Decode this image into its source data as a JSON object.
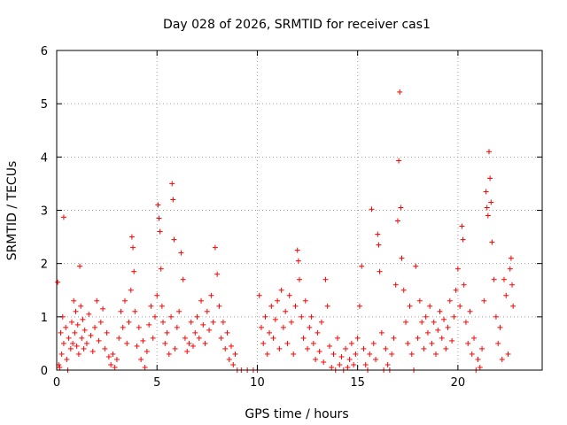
{
  "chart_data": {
    "type": "scatter",
    "title": "Day 028 of 2026, SRMTID for receiver cas1",
    "xlabel": "GPS time / hours",
    "ylabel": "SRMTID / TECUs",
    "xlim": [
      0,
      24.2
    ],
    "ylim": [
      0,
      6
    ],
    "xticks": [
      0,
      5,
      10,
      15,
      20
    ],
    "yticks": [
      0,
      1,
      2,
      3,
      4,
      5,
      6
    ],
    "grid": true,
    "marker": "+",
    "series": [
      {
        "name": "SRMTID",
        "color": "#ff0000",
        "points": [
          [
            0.05,
            1.65
          ],
          [
            0.1,
            0.1
          ],
          [
            0.15,
            0.05
          ],
          [
            0.2,
            0.7
          ],
          [
            0.25,
            0.3
          ],
          [
            0.3,
            1.0
          ],
          [
            0.35,
            0.5
          ],
          [
            0.35,
            2.87
          ],
          [
            0.45,
            0.8
          ],
          [
            0.5,
            0.2
          ],
          [
            0.55,
            0.0
          ],
          [
            0.6,
            0.6
          ],
          [
            0.7,
            0.4
          ],
          [
            0.75,
            0.9
          ],
          [
            0.8,
            0.5
          ],
          [
            0.85,
            1.3
          ],
          [
            0.9,
            0.7
          ],
          [
            0.95,
            1.1
          ],
          [
            1.0,
            0.45
          ],
          [
            1.05,
            0.85
          ],
          [
            1.1,
            0.3
          ],
          [
            1.15,
            1.95
          ],
          [
            1.2,
            1.2
          ],
          [
            1.25,
            0.6
          ],
          [
            1.3,
            0.95
          ],
          [
            1.35,
            0.4
          ],
          [
            1.4,
            0.75
          ],
          [
            1.5,
            0.5
          ],
          [
            1.6,
            1.05
          ],
          [
            1.7,
            0.65
          ],
          [
            1.8,
            0.35
          ],
          [
            1.9,
            0.8
          ],
          [
            2.0,
            1.3
          ],
          [
            2.1,
            0.55
          ],
          [
            2.2,
            0.9
          ],
          [
            2.3,
            1.15
          ],
          [
            2.4,
            0.4
          ],
          [
            2.5,
            0.7
          ],
          [
            2.6,
            0.25
          ],
          [
            2.7,
            0.1
          ],
          [
            2.8,
            0.3
          ],
          [
            2.9,
            0.05
          ],
          [
            3.0,
            0.2
          ],
          [
            3.1,
            0.6
          ],
          [
            3.2,
            1.1
          ],
          [
            3.3,
            0.8
          ],
          [
            3.4,
            1.3
          ],
          [
            3.5,
            0.5
          ],
          [
            3.6,
            0.9
          ],
          [
            3.7,
            1.5
          ],
          [
            3.75,
            2.5
          ],
          [
            3.8,
            2.3
          ],
          [
            3.85,
            1.85
          ],
          [
            3.9,
            1.1
          ],
          [
            4.0,
            0.45
          ],
          [
            4.1,
            0.8
          ],
          [
            4.2,
            0.2
          ],
          [
            4.3,
            0.55
          ],
          [
            4.4,
            0.05
          ],
          [
            4.5,
            0.35
          ],
          [
            4.6,
            0.85
          ],
          [
            4.7,
            1.2
          ],
          [
            4.8,
            0.6
          ],
          [
            4.9,
            1.0
          ],
          [
            5.0,
            1.4
          ],
          [
            5.05,
            3.1
          ],
          [
            5.1,
            2.85
          ],
          [
            5.15,
            2.6
          ],
          [
            5.2,
            1.9
          ],
          [
            5.25,
            1.2
          ],
          [
            5.3,
            0.9
          ],
          [
            5.4,
            0.5
          ],
          [
            5.5,
            0.7
          ],
          [
            5.6,
            0.3
          ],
          [
            5.7,
            1.0
          ],
          [
            5.75,
            3.5
          ],
          [
            5.8,
            3.2
          ],
          [
            5.85,
            2.45
          ],
          [
            5.9,
            0.4
          ],
          [
            6.0,
            0.8
          ],
          [
            6.1,
            1.1
          ],
          [
            6.2,
            2.2
          ],
          [
            6.3,
            1.7
          ],
          [
            6.4,
            0.6
          ],
          [
            6.5,
            0.35
          ],
          [
            6.6,
            0.5
          ],
          [
            6.7,
            0.9
          ],
          [
            6.8,
            0.45
          ],
          [
            6.9,
            0.7
          ],
          [
            7.0,
            1.0
          ],
          [
            7.1,
            0.6
          ],
          [
            7.2,
            1.3
          ],
          [
            7.3,
            0.85
          ],
          [
            7.4,
            0.5
          ],
          [
            7.5,
            1.1
          ],
          [
            7.6,
            0.75
          ],
          [
            7.7,
            1.4
          ],
          [
            7.8,
            0.9
          ],
          [
            7.9,
            2.3
          ],
          [
            8.0,
            1.8
          ],
          [
            8.1,
            1.2
          ],
          [
            8.2,
            0.6
          ],
          [
            8.3,
            0.9
          ],
          [
            8.4,
            0.4
          ],
          [
            8.5,
            0.7
          ],
          [
            8.6,
            0.2
          ],
          [
            8.7,
            0.45
          ],
          [
            8.8,
            0.1
          ],
          [
            8.9,
            0.3
          ],
          [
            9.0,
            0.0
          ],
          [
            9.2,
            0.0
          ],
          [
            9.5,
            0.0
          ],
          [
            9.8,
            0.0
          ],
          [
            10.0,
            0.0
          ],
          [
            10.1,
            1.4
          ],
          [
            10.2,
            0.8
          ],
          [
            10.3,
            0.5
          ],
          [
            10.4,
            1.0
          ],
          [
            10.5,
            0.3
          ],
          [
            10.6,
            0.7
          ],
          [
            10.7,
            1.2
          ],
          [
            10.8,
            0.6
          ],
          [
            10.9,
            0.95
          ],
          [
            11.0,
            1.3
          ],
          [
            11.1,
            0.4
          ],
          [
            11.2,
            1.5
          ],
          [
            11.3,
            0.8
          ],
          [
            11.4,
            1.1
          ],
          [
            11.5,
            0.5
          ],
          [
            11.6,
            1.4
          ],
          [
            11.7,
            0.9
          ],
          [
            11.8,
            0.3
          ],
          [
            11.9,
            1.2
          ],
          [
            12.0,
            2.25
          ],
          [
            12.05,
            2.05
          ],
          [
            12.1,
            1.7
          ],
          [
            12.2,
            1.0
          ],
          [
            12.3,
            0.6
          ],
          [
            12.4,
            1.3
          ],
          [
            12.5,
            0.4
          ],
          [
            12.6,
            0.8
          ],
          [
            12.7,
            1.0
          ],
          [
            12.8,
            0.5
          ],
          [
            12.9,
            0.2
          ],
          [
            13.0,
            0.7
          ],
          [
            13.1,
            0.35
          ],
          [
            13.2,
            0.9
          ],
          [
            13.3,
            0.15
          ],
          [
            13.4,
            1.7
          ],
          [
            13.5,
            1.2
          ],
          [
            13.6,
            0.45
          ],
          [
            13.7,
            0.05
          ],
          [
            13.8,
            0.3
          ],
          [
            13.9,
            0.0
          ],
          [
            14.0,
            0.6
          ],
          [
            14.1,
            0.1
          ],
          [
            14.2,
            0.25
          ],
          [
            14.3,
            0.0
          ],
          [
            14.4,
            0.4
          ],
          [
            14.5,
            0.05
          ],
          [
            14.6,
            0.2
          ],
          [
            14.7,
            0.5
          ],
          [
            14.8,
            0.1
          ],
          [
            14.9,
            0.3
          ],
          [
            15.0,
            0.6
          ],
          [
            15.1,
            1.2
          ],
          [
            15.2,
            1.95
          ],
          [
            15.3,
            0.4
          ],
          [
            15.4,
            0.1
          ],
          [
            15.5,
            0.0
          ],
          [
            15.6,
            0.3
          ],
          [
            15.7,
            3.02
          ],
          [
            15.8,
            0.5
          ],
          [
            15.9,
            0.2
          ],
          [
            16.0,
            2.55
          ],
          [
            16.05,
            2.35
          ],
          [
            16.1,
            1.85
          ],
          [
            16.2,
            0.7
          ],
          [
            16.3,
            0.0
          ],
          [
            16.4,
            0.4
          ],
          [
            16.5,
            0.1
          ],
          [
            16.6,
            0.0
          ],
          [
            16.7,
            0.3
          ],
          [
            16.8,
            0.6
          ],
          [
            16.9,
            1.6
          ],
          [
            17.0,
            2.8
          ],
          [
            17.05,
            3.93
          ],
          [
            17.1,
            5.22
          ],
          [
            17.15,
            3.05
          ],
          [
            17.2,
            2.1
          ],
          [
            17.3,
            1.5
          ],
          [
            17.4,
            0.9
          ],
          [
            17.5,
            0.5
          ],
          [
            17.6,
            1.2
          ],
          [
            17.7,
            0.3
          ],
          [
            17.8,
            0.0
          ],
          [
            17.9,
            1.95
          ],
          [
            18.0,
            0.6
          ],
          [
            18.1,
            1.3
          ],
          [
            18.2,
            0.9
          ],
          [
            18.3,
            0.4
          ],
          [
            18.4,
            1.0
          ],
          [
            18.5,
            0.7
          ],
          [
            18.6,
            1.2
          ],
          [
            18.7,
            0.5
          ],
          [
            18.8,
            0.9
          ],
          [
            18.9,
            0.3
          ],
          [
            19.0,
            0.75
          ],
          [
            19.1,
            1.1
          ],
          [
            19.2,
            0.6
          ],
          [
            19.3,
            0.95
          ],
          [
            19.4,
            0.4
          ],
          [
            19.5,
            0.8
          ],
          [
            19.6,
            1.3
          ],
          [
            19.7,
            0.55
          ],
          [
            19.8,
            1.0
          ],
          [
            19.9,
            1.5
          ],
          [
            20.0,
            1.9
          ],
          [
            20.1,
            1.2
          ],
          [
            20.2,
            2.7
          ],
          [
            20.25,
            2.45
          ],
          [
            20.3,
            1.6
          ],
          [
            20.4,
            0.9
          ],
          [
            20.5,
            0.5
          ],
          [
            20.6,
            1.1
          ],
          [
            20.7,
            0.3
          ],
          [
            20.8,
            0.6
          ],
          [
            20.9,
            0.0
          ],
          [
            21.0,
            0.2
          ],
          [
            21.1,
            0.05
          ],
          [
            21.2,
            0.4
          ],
          [
            21.3,
            1.3
          ],
          [
            21.4,
            3.35
          ],
          [
            21.45,
            3.05
          ],
          [
            21.5,
            2.9
          ],
          [
            21.55,
            4.1
          ],
          [
            21.6,
            3.6
          ],
          [
            21.65,
            3.15
          ],
          [
            21.7,
            2.4
          ],
          [
            21.8,
            1.7
          ],
          [
            21.9,
            1.0
          ],
          [
            22.0,
            0.5
          ],
          [
            22.1,
            0.8
          ],
          [
            22.2,
            0.2
          ],
          [
            22.3,
            1.7
          ],
          [
            22.4,
            1.4
          ],
          [
            22.5,
            0.3
          ],
          [
            22.6,
            1.9
          ],
          [
            22.65,
            2.1
          ],
          [
            22.7,
            1.6
          ],
          [
            22.75,
            1.2
          ]
        ]
      }
    ]
  }
}
